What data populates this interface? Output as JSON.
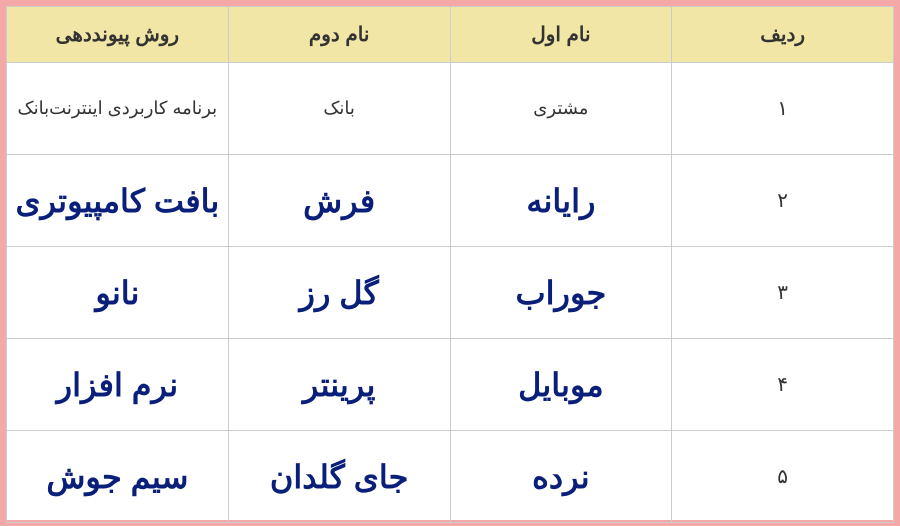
{
  "table": {
    "headers": {
      "col1": "ردیف",
      "col2": "نام اول",
      "col3": "نام دوم",
      "col4": "روش پیونددهی"
    },
    "rows": [
      {
        "num": "۱",
        "name1": "مشتری",
        "name2": "بانک",
        "method": "برنامه کاربردی اینترنت‌بانک",
        "style": "normal"
      },
      {
        "num": "۲",
        "name1": "رایانه",
        "name2": "فرش",
        "method": "بافت کامپیوتری",
        "style": "bold"
      },
      {
        "num": "۳",
        "name1": "جوراب",
        "name2": "گل رز",
        "method": "نانو",
        "style": "bold"
      },
      {
        "num": "۴",
        "name1": "موبایل",
        "name2": "پرینتر",
        "method": "نرم افزار",
        "style": "bold"
      },
      {
        "num": "۵",
        "name1": "نرده",
        "name2": "جای گلدان",
        "method": "سیم جوش",
        "style": "bold"
      }
    ],
    "styling": {
      "header_bg": "#f2e6a7",
      "header_text_color": "#333333",
      "header_fontsize": 20,
      "normal_text_color": "#333333",
      "normal_fontsize": 18,
      "bold_text_color": "#0a1f7a",
      "bold_fontsize": 32,
      "border_color": "#cccccc",
      "outer_bg": "#f5a8a8",
      "table_bg": "#ffffff"
    }
  }
}
